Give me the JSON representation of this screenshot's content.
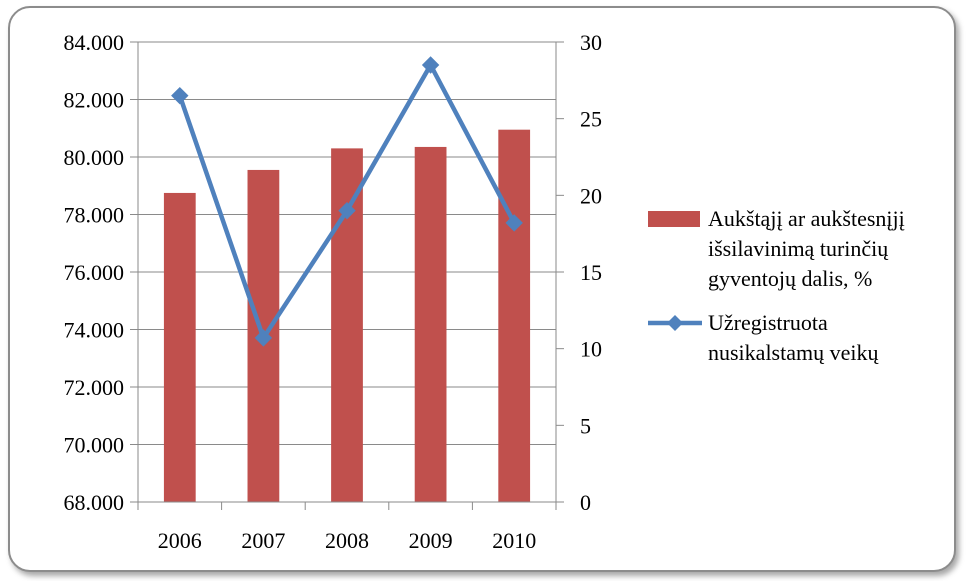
{
  "chart_data": {
    "type": "bar+line",
    "categories": [
      "2006",
      "2007",
      "2008",
      "2009",
      "2010"
    ],
    "y_left": {
      "ticks": [
        "68.000",
        "70.000",
        "72.000",
        "74.000",
        "76.000",
        "78.000",
        "80.000",
        "82.000",
        "84.000"
      ],
      "min": 68,
      "max": 84,
      "step": 2
    },
    "y_right": {
      "ticks": [
        "0",
        "5",
        "10",
        "15",
        "20",
        "25",
        "30"
      ],
      "min": 0,
      "max": 30,
      "step": 5
    },
    "grid": true,
    "legend_position": "right",
    "series": [
      {
        "name": "Aukštąjį ar aukštesnįjį išsilavinimą turinčių gyventojų dalis, %",
        "legend_lines": [
          "Aukštąjį ar aukštesnįjį",
          "išsilavinimą turinčių",
          "gyventojų dalis, %"
        ],
        "type": "bar",
        "axis": "left",
        "color": "#C0504D",
        "values": [
          78.75,
          79.55,
          80.3,
          80.35,
          80.95
        ]
      },
      {
        "name": "Užregistruota nusikalstamų veikų",
        "legend_lines": [
          "Užregistruota",
          "nusikalstamų veikų"
        ],
        "type": "line",
        "axis": "right",
        "color": "#4F81BD",
        "marker": "diamond",
        "values": [
          26.5,
          10.7,
          19.0,
          28.5,
          18.2
        ]
      }
    ]
  }
}
